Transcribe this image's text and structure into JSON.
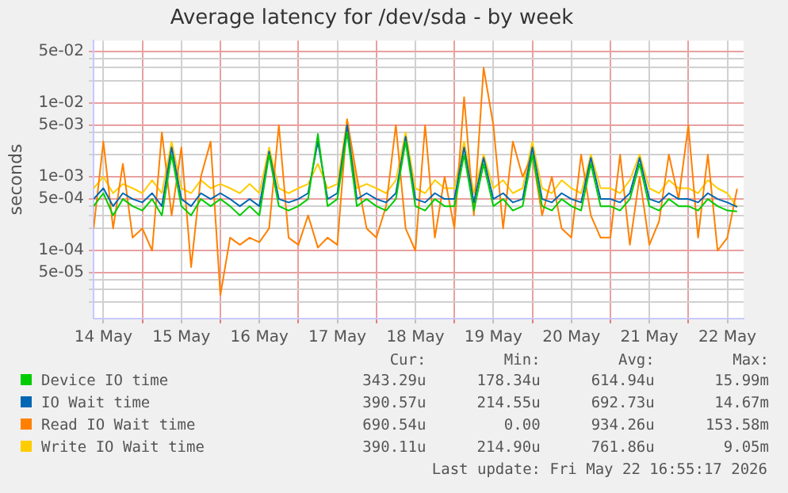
{
  "chart_data": {
    "type": "line",
    "title": "Average latency for /dev/sda - by week",
    "ylabel": "seconds",
    "log": "y",
    "grid": true,
    "legend": "bottom",
    "marker": "none",
    "line_style": "solid",
    "xlim": [
      "2026-05-14T09:00",
      "2026-05-22T17:00"
    ],
    "xticks": [
      {
        "value": "2026-05-14T12:00",
        "label": "14 May"
      },
      {
        "value": "2026-05-15T00:00",
        "label": null
      },
      {
        "value": "2026-05-15T12:00",
        "label": "15 May"
      },
      {
        "value": "2026-05-16T00:00",
        "label": null
      },
      {
        "value": "2026-05-16T12:00",
        "label": "16 May"
      },
      {
        "value": "2026-05-17T00:00",
        "label": null
      },
      {
        "value": "2026-05-17T12:00",
        "label": "17 May"
      },
      {
        "value": "2026-05-18T00:00",
        "label": null
      },
      {
        "value": "2026-05-18T12:00",
        "label": "18 May"
      },
      {
        "value": "2026-05-19T00:00",
        "label": null
      },
      {
        "value": "2026-05-19T12:00",
        "label": "19 May"
      },
      {
        "value": "2026-05-20T00:00",
        "label": null
      },
      {
        "value": "2026-05-20T12:00",
        "label": "20 May"
      },
      {
        "value": "2026-05-21T00:00",
        "label": null
      },
      {
        "value": "2026-05-21T12:00",
        "label": "21 May"
      },
      {
        "value": "2026-05-22T00:00",
        "label": null
      },
      {
        "value": "2026-05-22T12:00",
        "label": "22 May"
      }
    ],
    "ylim": [
      1.2e-05,
      0.07
    ],
    "yticks": [
      {
        "value": 2e-05,
        "label": null
      },
      {
        "value": 3e-05,
        "label": null
      },
      {
        "value": 4e-05,
        "label": null
      },
      {
        "value": 5e-05,
        "label": "5e-05"
      },
      {
        "value": 0.0001,
        "label": "1e-04"
      },
      {
        "value": 0.0002,
        "label": null
      },
      {
        "value": 0.0003,
        "label": null
      },
      {
        "value": 0.0004,
        "label": null
      },
      {
        "value": 0.0005,
        "label": "5e-04"
      },
      {
        "value": 0.001,
        "label": "1e-03"
      },
      {
        "value": 0.002,
        "label": null
      },
      {
        "value": 0.003,
        "label": null
      },
      {
        "value": 0.004,
        "label": null
      },
      {
        "value": 0.005,
        "label": "5e-03"
      },
      {
        "value": 0.01,
        "label": "1e-02"
      },
      {
        "value": 0.02,
        "label": null
      },
      {
        "value": 0.03,
        "label": null
      },
      {
        "value": 0.04,
        "label": null
      },
      {
        "value": 0.05,
        "label": "5e-02"
      }
    ],
    "x": [
      "2026-05-14T09:00",
      "2026-05-14T12:00",
      "2026-05-14T15:00",
      "2026-05-14T18:00",
      "2026-05-14T21:00",
      "2026-05-15T00:00",
      "2026-05-15T03:00",
      "2026-05-15T06:00",
      "2026-05-15T09:00",
      "2026-05-15T12:00",
      "2026-05-15T15:00",
      "2026-05-15T18:00",
      "2026-05-15T21:00",
      "2026-05-16T00:00",
      "2026-05-16T03:00",
      "2026-05-16T06:00",
      "2026-05-16T09:00",
      "2026-05-16T12:00",
      "2026-05-16T15:00",
      "2026-05-16T18:00",
      "2026-05-16T21:00",
      "2026-05-17T00:00",
      "2026-05-17T03:00",
      "2026-05-17T06:00",
      "2026-05-17T09:00",
      "2026-05-17T12:00",
      "2026-05-17T15:00",
      "2026-05-17T18:00",
      "2026-05-17T21:00",
      "2026-05-18T00:00",
      "2026-05-18T03:00",
      "2026-05-18T06:00",
      "2026-05-18T09:00",
      "2026-05-18T12:00",
      "2026-05-18T15:00",
      "2026-05-18T18:00",
      "2026-05-18T21:00",
      "2026-05-19T00:00",
      "2026-05-19T03:00",
      "2026-05-19T06:00",
      "2026-05-19T09:00",
      "2026-05-19T12:00",
      "2026-05-19T15:00",
      "2026-05-19T18:00",
      "2026-05-19T21:00",
      "2026-05-20T00:00",
      "2026-05-20T03:00",
      "2026-05-20T06:00",
      "2026-05-20T09:00",
      "2026-05-20T12:00",
      "2026-05-20T15:00",
      "2026-05-20T18:00",
      "2026-05-20T21:00",
      "2026-05-21T00:00",
      "2026-05-21T03:00",
      "2026-05-21T06:00",
      "2026-05-21T09:00",
      "2026-05-21T12:00",
      "2026-05-21T15:00",
      "2026-05-21T18:00",
      "2026-05-21T21:00",
      "2026-05-22T00:00",
      "2026-05-22T03:00",
      "2026-05-22T06:00",
      "2026-05-22T09:00",
      "2026-05-22T12:00",
      "2026-05-22T15:00"
    ],
    "series": [
      {
        "name": "Device IO time",
        "color": "#00cc00",
        "values": [
          0.0004,
          0.0006,
          0.0003,
          0.0005,
          0.0004,
          0.00035,
          0.0005,
          0.0003,
          0.002,
          0.0004,
          0.0003,
          0.0005,
          0.0004,
          0.0005,
          0.0004,
          0.0003,
          0.0004,
          0.0003,
          0.002,
          0.0004,
          0.00035,
          0.0004,
          0.0005,
          0.0038,
          0.0004,
          0.0005,
          0.004,
          0.0004,
          0.0005,
          0.0004,
          0.00035,
          0.0005,
          0.003,
          0.0004,
          0.00035,
          0.0005,
          0.0004,
          0.0004,
          0.002,
          0.00035,
          0.0015,
          0.0004,
          0.0005,
          0.00035,
          0.0004,
          0.002,
          0.0004,
          0.00035,
          0.0005,
          0.0004,
          0.00035,
          0.0015,
          0.0004,
          0.0004,
          0.00035,
          0.0005,
          0.0015,
          0.0004,
          0.00035,
          0.0005,
          0.0004,
          0.0004,
          0.00035,
          0.0005,
          0.0004,
          0.00035,
          0.00034
        ]
      },
      {
        "name": "IO Wait time",
        "color": "#0066b3",
        "values": [
          0.0005,
          0.0007,
          0.0004,
          0.0006,
          0.0005,
          0.00045,
          0.0006,
          0.0004,
          0.0025,
          0.0005,
          0.0004,
          0.0006,
          0.0005,
          0.0006,
          0.0005,
          0.0004,
          0.0005,
          0.0004,
          0.0022,
          0.0005,
          0.00045,
          0.0005,
          0.0006,
          0.003,
          0.0005,
          0.0006,
          0.005,
          0.0005,
          0.0006,
          0.0005,
          0.00045,
          0.0006,
          0.0035,
          0.0005,
          0.00045,
          0.0006,
          0.0005,
          0.0005,
          0.0025,
          0.00045,
          0.0018,
          0.0005,
          0.0006,
          0.00045,
          0.0005,
          0.0025,
          0.0005,
          0.00045,
          0.0006,
          0.0005,
          0.00045,
          0.0018,
          0.0005,
          0.0005,
          0.00045,
          0.0006,
          0.0018,
          0.0005,
          0.00045,
          0.0006,
          0.0005,
          0.0005,
          0.00045,
          0.0006,
          0.0005,
          0.00045,
          0.00039
        ]
      },
      {
        "name": "Read IO Wait time",
        "color": "#ff8000",
        "values": [
          0.0002,
          0.003,
          0.0002,
          0.0015,
          0.00015,
          0.0002,
          0.0001,
          0.004,
          0.0003,
          0.0025,
          6e-05,
          0.001,
          0.003,
          2.5e-05,
          0.00015,
          0.00012,
          0.00015,
          0.00013,
          0.0002,
          0.005,
          0.00015,
          0.00012,
          0.0003,
          0.00011,
          0.00015,
          0.00012,
          0.006,
          0.001,
          0.0002,
          0.00015,
          0.0004,
          0.005,
          0.0002,
          0.0001,
          0.005,
          0.00015,
          0.001,
          0.0002,
          0.012,
          0.0003,
          0.03,
          0.005,
          0.0002,
          0.003,
          0.001,
          0.002,
          0.0003,
          0.001,
          0.0002,
          0.00015,
          0.002,
          0.0003,
          0.00015,
          0.00015,
          0.002,
          0.00012,
          0.001,
          0.00012,
          0.00025,
          0.002,
          0.0005,
          0.005,
          0.00015,
          0.002,
          0.0001,
          0.00015,
          0.00069
        ]
      },
      {
        "name": "Write IO Wait time",
        "color": "#ffcc00",
        "values": [
          0.0007,
          0.001,
          0.0006,
          0.0008,
          0.0007,
          0.0006,
          0.0009,
          0.0006,
          0.003,
          0.0007,
          0.0006,
          0.0009,
          0.0007,
          0.0008,
          0.0007,
          0.0006,
          0.0008,
          0.0006,
          0.0025,
          0.0007,
          0.0006,
          0.0007,
          0.0008,
          0.0015,
          0.0007,
          0.0008,
          0.006,
          0.0007,
          0.0008,
          0.0007,
          0.0006,
          0.0009,
          0.004,
          0.0007,
          0.0006,
          0.0009,
          0.0007,
          0.0007,
          0.003,
          0.0006,
          0.002,
          0.0007,
          0.0009,
          0.0006,
          0.0007,
          0.003,
          0.0007,
          0.0006,
          0.0009,
          0.0007,
          0.0006,
          0.002,
          0.0007,
          0.0007,
          0.0006,
          0.0009,
          0.002,
          0.0007,
          0.0006,
          0.0009,
          0.0007,
          0.0007,
          0.0006,
          0.0009,
          0.0007,
          0.0006,
          0.00039
        ]
      }
    ],
    "annotations": [
      "Cur:",
      "Min:",
      "Avg:",
      "Max:",
      "343.29u",
      "178.34u",
      "614.94u",
      "15.99m",
      "390.57u",
      "214.55u",
      "692.73u",
      "14.67m",
      "690.54u",
      "0.00",
      "934.26u",
      "153.58m",
      "390.11u",
      "214.90u",
      "761.86u",
      "9.05m",
      "Last update: Fri May 22 16:55:17 2026"
    ]
  }
}
